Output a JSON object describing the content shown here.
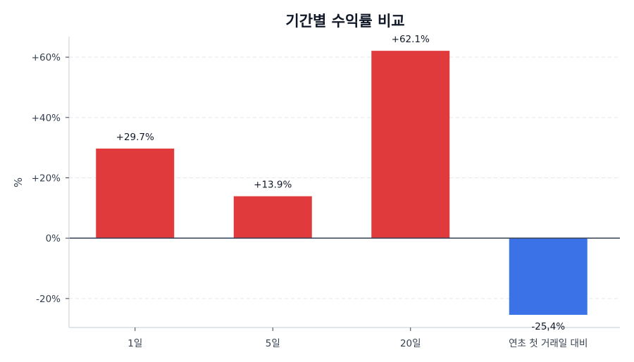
{
  "chart_data": {
    "type": "bar",
    "title": "기간별 수익률 비교",
    "xlabel": "",
    "ylabel": "%",
    "categories": [
      "1일",
      "5일",
      "20일",
      "연초 첫 거래일 대비"
    ],
    "values": [
      29.7,
      13.9,
      62.1,
      -25.4
    ],
    "value_labels": [
      "+29.7%",
      "+13.9%",
      "+62.1%",
      "-25.4%"
    ],
    "ylim": [
      -29.6,
      66.8
    ],
    "yticks": [
      -20,
      0,
      20,
      40,
      60
    ],
    "ytick_labels": [
      "-20%",
      "0%",
      "+20%",
      "+40%",
      "+60%"
    ],
    "grid": {
      "axis": "y",
      "style": "dashed",
      "color": "#e5e7eb"
    },
    "legend": null,
    "colors": {
      "positive": "#e03a3c",
      "negative": "#3b72e8",
      "zero_line": "#334155",
      "spine": "#d1d5db",
      "text": "#374151"
    }
  }
}
